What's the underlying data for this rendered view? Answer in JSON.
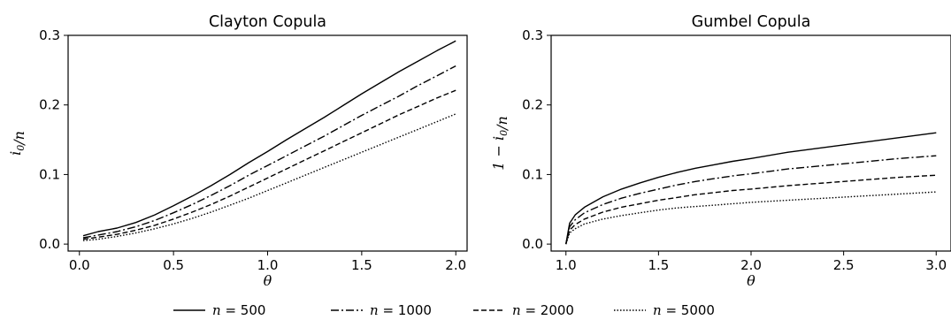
{
  "chart_data": [
    {
      "type": "line",
      "title": "Clayton Copula",
      "xlabel": "θ",
      "ylabel": "i₀/n",
      "xlim": [
        -0.06,
        2.06
      ],
      "ylim": [
        -0.01,
        0.3
      ],
      "xticks": [
        0.0,
        0.5,
        1.0,
        1.5,
        2.0
      ],
      "xtick_labels": [
        "0.0",
        "0.5",
        "1.0",
        "1.5",
        "2.0"
      ],
      "yticks": [
        0.0,
        0.1,
        0.2,
        0.3
      ],
      "ytick_labels": [
        "0.0",
        "0.1",
        "0.2",
        "0.3"
      ],
      "grid": false,
      "x": [
        0.02,
        0.1,
        0.2,
        0.3,
        0.4,
        0.5,
        0.6,
        0.7,
        0.8,
        0.9,
        1.0,
        1.1,
        1.2,
        1.3,
        1.4,
        1.5,
        1.6,
        1.7,
        1.8,
        1.9,
        2.0
      ],
      "series": [
        {
          "name": "n = 500",
          "dash": "solid",
          "values": [
            0.012,
            0.018,
            0.023,
            0.031,
            0.042,
            0.055,
            0.069,
            0.084,
            0.1,
            0.117,
            0.133,
            0.15,
            0.166,
            0.182,
            0.199,
            0.216,
            0.232,
            0.248,
            0.263,
            0.278,
            0.292
          ]
        },
        {
          "name": "n = 1000",
          "dash": "dashdot",
          "values": [
            0.009,
            0.013,
            0.018,
            0.025,
            0.034,
            0.045,
            0.057,
            0.07,
            0.084,
            0.099,
            0.113,
            0.127,
            0.141,
            0.155,
            0.17,
            0.185,
            0.199,
            0.213,
            0.228,
            0.242,
            0.256
          ]
        },
        {
          "name": "n = 2000",
          "dash": "dashed",
          "values": [
            0.007,
            0.01,
            0.014,
            0.02,
            0.027,
            0.036,
            0.046,
            0.057,
            0.069,
            0.082,
            0.095,
            0.108,
            0.121,
            0.134,
            0.147,
            0.16,
            0.173,
            0.186,
            0.198,
            0.21,
            0.221
          ]
        },
        {
          "name": "n = 5000",
          "dash": "dotted",
          "values": [
            0.005,
            0.007,
            0.011,
            0.016,
            0.022,
            0.029,
            0.037,
            0.046,
            0.056,
            0.066,
            0.077,
            0.088,
            0.099,
            0.11,
            0.121,
            0.132,
            0.143,
            0.154,
            0.165,
            0.176,
            0.187
          ]
        }
      ]
    },
    {
      "type": "line",
      "title": "Gumbel Copula",
      "xlabel": "θ",
      "ylabel": "1 − i₀/n",
      "xlim": [
        0.92,
        3.08
      ],
      "ylim": [
        -0.01,
        0.3
      ],
      "xticks": [
        1.0,
        1.5,
        2.0,
        2.5,
        3.0
      ],
      "xtick_labels": [
        "1.0",
        "1.5",
        "2.0",
        "2.5",
        "3.0"
      ],
      "yticks": [
        0.0,
        0.1,
        0.2,
        0.3
      ],
      "ytick_labels": [
        "0.0",
        "0.1",
        "0.2",
        "0.3"
      ],
      "grid": false,
      "x": [
        1.0,
        1.02,
        1.05,
        1.1,
        1.2,
        1.3,
        1.4,
        1.5,
        1.6,
        1.7,
        1.8,
        1.9,
        2.0,
        2.2,
        2.4,
        2.6,
        2.8,
        3.0
      ],
      "series": [
        {
          "name": "n = 500",
          "dash": "solid",
          "values": [
            0.0,
            0.03,
            0.042,
            0.053,
            0.068,
            0.079,
            0.088,
            0.096,
            0.103,
            0.109,
            0.114,
            0.119,
            0.123,
            0.132,
            0.139,
            0.146,
            0.153,
            0.16
          ]
        },
        {
          "name": "n = 1000",
          "dash": "dashdot",
          "values": [
            0.0,
            0.025,
            0.035,
            0.045,
            0.057,
            0.066,
            0.073,
            0.079,
            0.085,
            0.09,
            0.094,
            0.098,
            0.101,
            0.108,
            0.113,
            0.118,
            0.123,
            0.127
          ]
        },
        {
          "name": "n = 2000",
          "dash": "dashed",
          "values": [
            0.0,
            0.02,
            0.028,
            0.036,
            0.046,
            0.053,
            0.058,
            0.063,
            0.067,
            0.071,
            0.074,
            0.077,
            0.079,
            0.084,
            0.088,
            0.092,
            0.096,
            0.099
          ]
        },
        {
          "name": "n = 5000",
          "dash": "dotted",
          "values": [
            0.0,
            0.016,
            0.022,
            0.029,
            0.036,
            0.041,
            0.045,
            0.049,
            0.052,
            0.054,
            0.056,
            0.058,
            0.06,
            0.063,
            0.066,
            0.069,
            0.072,
            0.075
          ]
        }
      ]
    }
  ],
  "legend": {
    "placement": "bottom-center",
    "entries": [
      {
        "dash": "solid",
        "label": "n = 500"
      },
      {
        "dash": "dashdot",
        "label": "n = 1000"
      },
      {
        "dash": "dashed",
        "label": "n = 2000"
      },
      {
        "dash": "dotted",
        "label": "n = 5000"
      }
    ]
  }
}
